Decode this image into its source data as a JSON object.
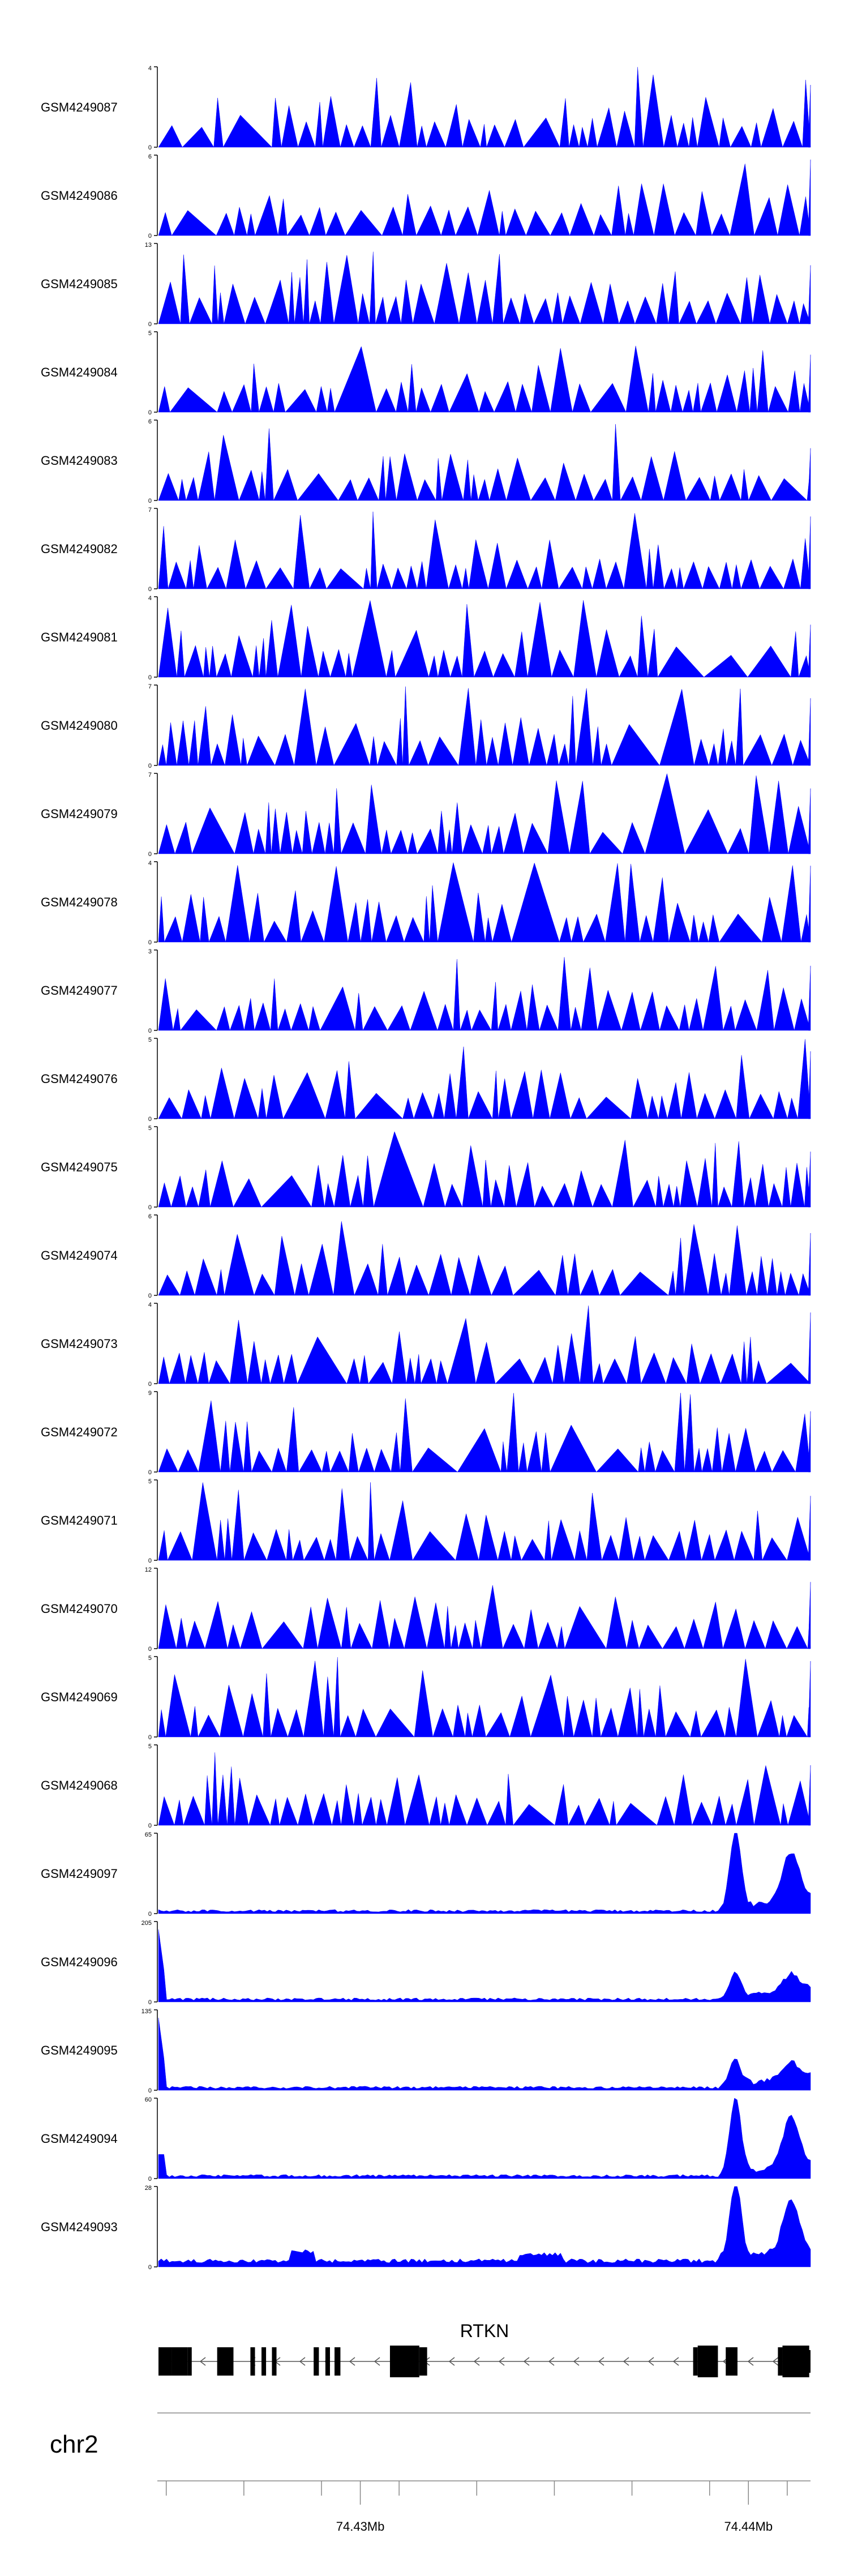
{
  "colors": {
    "fill": "#0000ff",
    "axis": "#000000",
    "gene": "#000000",
    "ruler": "#888888"
  },
  "chart_data": {
    "type": "area",
    "x_domain_bp": [
      74424800,
      74441600
    ],
    "genome": {
      "chromosome": "chr2",
      "ticks": [
        {
          "pos": 74430000,
          "label": "74.43Mb"
        },
        {
          "pos": 74440000,
          "label": "74.44Mb"
        }
      ]
    },
    "gene": {
      "name": "RTKN",
      "strand": "-",
      "exons": [
        {
          "start_frac": 0.0,
          "end_frac": 0.02
        },
        {
          "start_frac": 0.02,
          "end_frac": 0.045
        },
        {
          "start_frac": 0.045,
          "end_frac": 0.051
        },
        {
          "start_frac": 0.09,
          "end_frac": 0.115
        },
        {
          "start_frac": 0.141,
          "end_frac": 0.148
        },
        {
          "start_frac": 0.158,
          "end_frac": 0.165
        },
        {
          "start_frac": 0.174,
          "end_frac": 0.181
        },
        {
          "start_frac": 0.238,
          "end_frac": 0.246
        },
        {
          "start_frac": 0.256,
          "end_frac": 0.263
        },
        {
          "start_frac": 0.27,
          "end_frac": 0.279
        },
        {
          "start_frac": 0.355,
          "end_frac": 0.4
        },
        {
          "start_frac": 0.4,
          "end_frac": 0.412
        },
        {
          "start_frac": 0.82,
          "end_frac": 0.827
        },
        {
          "start_frac": 0.827,
          "end_frac": 0.858
        },
        {
          "start_frac": 0.87,
          "end_frac": 0.888
        },
        {
          "start_frac": 0.95,
          "end_frac": 0.957
        },
        {
          "start_frac": 0.957,
          "end_frac": 0.998
        }
      ]
    },
    "tracks": [
      {
        "name": "GSM4249087",
        "ymax": 4,
        "style": "spiky",
        "seed": 11
      },
      {
        "name": "GSM4249086",
        "ymax": 6,
        "style": "spiky",
        "seed": 12
      },
      {
        "name": "GSM4249085",
        "ymax": 13,
        "style": "spiky",
        "seed": 13
      },
      {
        "name": "GSM4249084",
        "ymax": 5,
        "style": "spiky",
        "seed": 14
      },
      {
        "name": "GSM4249083",
        "ymax": 6,
        "style": "spiky",
        "seed": 15
      },
      {
        "name": "GSM4249082",
        "ymax": 7,
        "style": "spiky",
        "seed": 16
      },
      {
        "name": "GSM4249081",
        "ymax": 4,
        "style": "spiky",
        "seed": 17
      },
      {
        "name": "GSM4249080",
        "ymax": 7,
        "style": "spiky",
        "seed": 18
      },
      {
        "name": "GSM4249079",
        "ymax": 7,
        "style": "spiky",
        "seed": 19
      },
      {
        "name": "GSM4249078",
        "ymax": 4,
        "style": "spiky",
        "seed": 20
      },
      {
        "name": "GSM4249077",
        "ymax": 3,
        "style": "spiky",
        "seed": 21
      },
      {
        "name": "GSM4249076",
        "ymax": 5,
        "style": "spiky",
        "seed": 22
      },
      {
        "name": "GSM4249075",
        "ymax": 5,
        "style": "spiky",
        "seed": 23
      },
      {
        "name": "GSM4249074",
        "ymax": 6,
        "style": "spiky",
        "seed": 24
      },
      {
        "name": "GSM4249073",
        "ymax": 4,
        "style": "spiky",
        "seed": 25
      },
      {
        "name": "GSM4249072",
        "ymax": 9,
        "style": "spiky",
        "seed": 26
      },
      {
        "name": "GSM4249071",
        "ymax": 5,
        "style": "spiky",
        "seed": 27
      },
      {
        "name": "GSM4249070",
        "ymax": 12,
        "style": "spiky",
        "seed": 28
      },
      {
        "name": "GSM4249069",
        "ymax": 5,
        "style": "spiky",
        "seed": 29
      },
      {
        "name": "GSM4249068",
        "ymax": 5,
        "style": "spiky",
        "seed": 30
      },
      {
        "name": "GSM4249097",
        "ymax": 65,
        "style": "smooth",
        "seed": 31
      },
      {
        "name": "GSM4249096",
        "ymax": 205,
        "style": "smooth",
        "seed": 32
      },
      {
        "name": "GSM4249095",
        "ymax": 135,
        "style": "smooth",
        "seed": 33
      },
      {
        "name": "GSM4249094",
        "ymax": 60,
        "style": "smooth",
        "seed": 34
      },
      {
        "name": "GSM4249093",
        "ymax": 28,
        "style": "smooth",
        "seed": 35
      }
    ]
  }
}
